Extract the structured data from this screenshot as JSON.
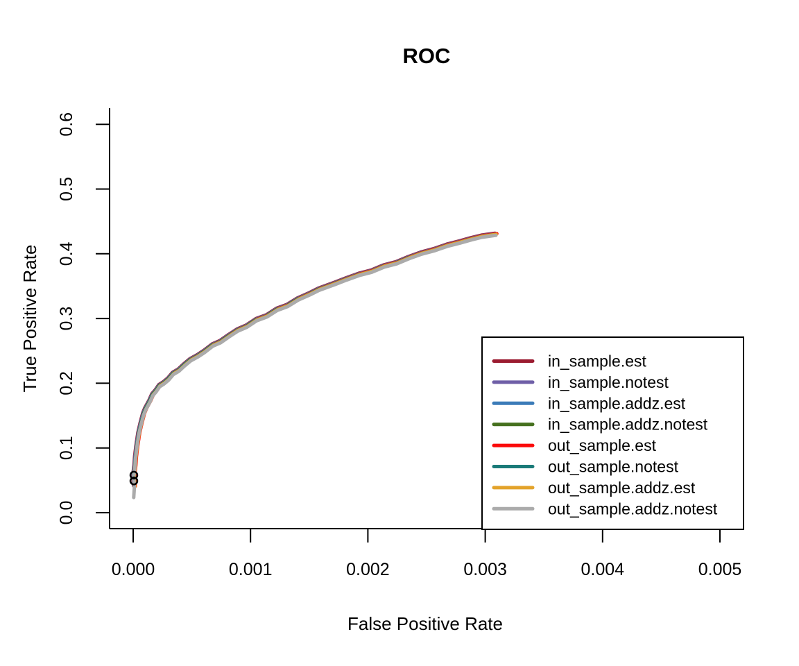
{
  "chart_data": {
    "type": "line",
    "title": "ROC",
    "xlabel": "False Positive Rate",
    "ylabel": "True Positive Rate",
    "xlim": [
      -0.0002,
      0.0052
    ],
    "ylim": [
      -0.024,
      0.624
    ],
    "grid": false,
    "background": "#ffffff",
    "axis_color": "#000000",
    "x_ticks": {
      "values": [
        0.0,
        0.001,
        0.002,
        0.003,
        0.004,
        0.005
      ],
      "labels": [
        "0.000",
        "0.001",
        "0.002",
        "0.003",
        "0.004",
        "0.005"
      ]
    },
    "y_ticks": {
      "values": [
        0.0,
        0.1,
        0.2,
        0.3,
        0.4,
        0.5,
        0.6
      ],
      "labels": [
        "0.0",
        "0.1",
        "0.2",
        "0.3",
        "0.4",
        "0.5",
        "0.6"
      ]
    },
    "legend": {
      "position": "bottomright",
      "border_color": "#000000",
      "fill": "#ffffff"
    },
    "series": [
      {
        "name": "in_sample.est",
        "color": "#9B1B30"
      },
      {
        "name": "in_sample.notest",
        "color": "#6F5FA7"
      },
      {
        "name": "in_sample.addz.est",
        "color": "#3B7BB8"
      },
      {
        "name": "in_sample.addz.notest",
        "color": "#45701E"
      },
      {
        "name": "out_sample.est",
        "color": "#FB0A0A"
      },
      {
        "name": "out_sample.notest",
        "color": "#1A7A78"
      },
      {
        "name": "out_sample.addz.est",
        "color": "#E3A32B"
      },
      {
        "name": "out_sample.addz.notest",
        "color": "#ABABAB"
      }
    ],
    "series_note": "All eight ROC curves overlap almost exactly; shared polyline below (FPR, TPR).",
    "points": [
      [
        5e-06,
        0.025
      ],
      [
        1e-05,
        0.04
      ],
      [
        5e-06,
        0.058
      ],
      [
        1.5e-05,
        0.072
      ],
      [
        2e-05,
        0.086
      ],
      [
        3e-05,
        0.101
      ],
      [
        4.7e-05,
        0.122
      ],
      [
        6.5e-05,
        0.136
      ],
      [
        8.8e-05,
        0.152
      ],
      [
        0.000106,
        0.16
      ],
      [
        0.000142,
        0.172
      ],
      [
        0.000166,
        0.182
      ],
      [
        0.000195,
        0.188
      ],
      [
        0.000225,
        0.196
      ],
      [
        0.00026,
        0.2
      ],
      [
        0.0003,
        0.206
      ],
      [
        0.000343,
        0.215
      ],
      [
        0.00039,
        0.22
      ],
      [
        0.000437,
        0.228
      ],
      [
        0.00049,
        0.236
      ],
      [
        0.00055,
        0.242
      ],
      [
        0.000609,
        0.249
      ],
      [
        0.00068,
        0.259
      ],
      [
        0.000745,
        0.264
      ],
      [
        0.000816,
        0.273
      ],
      [
        0.000892,
        0.282
      ],
      [
        0.000969,
        0.288
      ],
      [
        0.001052,
        0.298
      ],
      [
        0.001141,
        0.304
      ],
      [
        0.001229,
        0.314
      ],
      [
        0.001318,
        0.32
      ],
      [
        0.001407,
        0.33
      ],
      [
        0.001507,
        0.338
      ],
      [
        0.001584,
        0.345
      ],
      [
        0.00172,
        0.354
      ],
      [
        0.00182,
        0.361
      ],
      [
        0.001927,
        0.368
      ],
      [
        0.002033,
        0.373
      ],
      [
        0.00214,
        0.381
      ],
      [
        0.002246,
        0.386
      ],
      [
        0.002352,
        0.394
      ],
      [
        0.002459,
        0.401
      ],
      [
        0.002565,
        0.406
      ],
      [
        0.002677,
        0.413
      ],
      [
        0.002784,
        0.418
      ],
      [
        0.002884,
        0.423
      ],
      [
        0.002973,
        0.427
      ],
      [
        0.00305,
        0.429
      ],
      [
        0.003091,
        0.43
      ]
    ],
    "markers": [
      {
        "x": 0.0,
        "y": 0.058
      },
      {
        "x": 0.0,
        "y": 0.049
      }
    ],
    "marker_style": "open-circle"
  }
}
